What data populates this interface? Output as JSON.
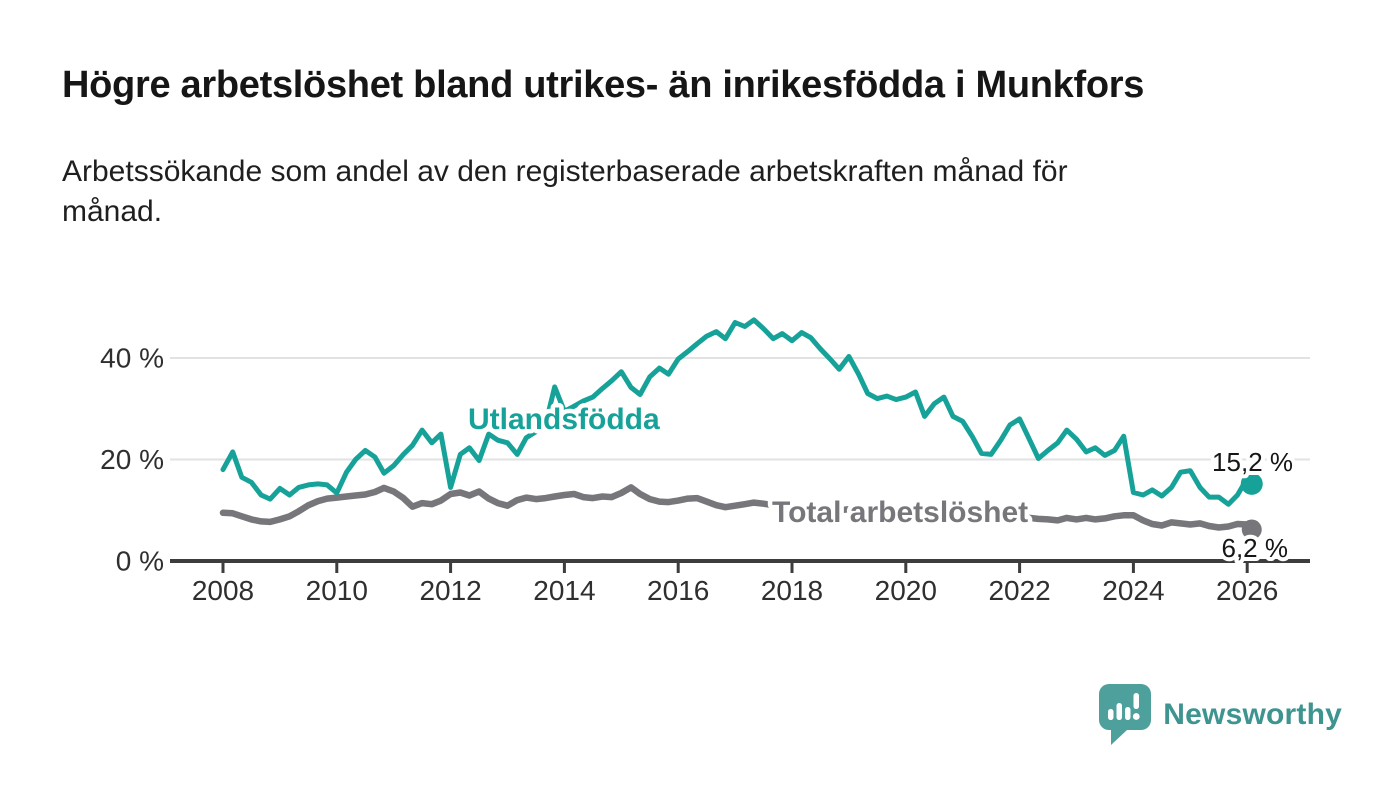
{
  "header": {
    "title": "Högre arbetslöshet bland utrikes- än inrikesfödda i Munkfors",
    "subtitle": "Arbetssökande som andel av den registerbaserade arbetskraften månad för månad.",
    "subtitle_lines": [
      "Arbetssökande som andel av den registerbaserade arbetskraften månad för",
      "månad."
    ]
  },
  "footer": {
    "brand": "Newsworthy"
  },
  "colors": {
    "background": "#ffffff",
    "accent_teal": "#17a299",
    "series_gray": "#77767b",
    "gridline": "#e2e2e2",
    "axis": "#3d3d3d",
    "tick_text": "#2f2f2f",
    "label_text": "#161616",
    "logo_bubble": "#4da09c",
    "logo_wordmark": "#3e948f"
  },
  "chart_data": {
    "type": "line",
    "title": "Högre arbetslöshet bland utrikes- än inrikesfödda i Munkfors",
    "subtitle": "Arbetssökande som andel av den registerbaserade arbetskraften månad för månad.",
    "unit": "%",
    "x_axis": {
      "ticks": [
        2008,
        2010,
        2012,
        2014,
        2016,
        2018,
        2020,
        2022,
        2024,
        2026
      ],
      "tick_labels": [
        "2008",
        "2010",
        "2012",
        "2014",
        "2016",
        "2018",
        "2020",
        "2022",
        "2024",
        "2026"
      ],
      "range": [
        2007.0,
        2027.1
      ]
    },
    "y_axis": {
      "ticks": [
        0,
        20,
        40
      ],
      "tick_labels": [
        "0 %",
        "20 %",
        "40 %"
      ],
      "grid_values": [
        20,
        40
      ],
      "range": [
        0,
        53
      ]
    },
    "legend_position": "inline-labels",
    "grid": true,
    "x": [
      2008,
      2008.17,
      2008.33,
      2008.5,
      2008.67,
      2008.83,
      2009,
      2009.17,
      2009.33,
      2009.5,
      2009.67,
      2009.83,
      2010,
      2010.17,
      2010.33,
      2010.5,
      2010.67,
      2010.83,
      2011,
      2011.17,
      2011.33,
      2011.5,
      2011.67,
      2011.83,
      2012,
      2012.17,
      2012.33,
      2012.5,
      2012.67,
      2012.83,
      2013,
      2013.17,
      2013.33,
      2013.5,
      2013.67,
      2013.83,
      2014,
      2014.17,
      2014.33,
      2014.5,
      2014.67,
      2014.83,
      2015,
      2015.17,
      2015.33,
      2015.5,
      2015.67,
      2015.83,
      2016,
      2016.17,
      2016.33,
      2016.5,
      2016.67,
      2016.83,
      2017,
      2017.17,
      2017.33,
      2017.5,
      2017.67,
      2017.83,
      2018,
      2018.17,
      2018.33,
      2018.5,
      2018.67,
      2018.83,
      2019,
      2019.17,
      2019.33,
      2019.5,
      2019.67,
      2019.83,
      2020,
      2020.17,
      2020.33,
      2020.5,
      2020.67,
      2020.83,
      2021,
      2021.17,
      2021.33,
      2021.5,
      2021.67,
      2021.83,
      2022,
      2022.17,
      2022.33,
      2022.5,
      2022.67,
      2022.83,
      2023,
      2023.17,
      2023.33,
      2023.5,
      2023.67,
      2023.83,
      2024,
      2024.17,
      2024.33,
      2024.5,
      2024.67,
      2024.83,
      2025,
      2025.17,
      2025.33,
      2025.5,
      2025.67,
      2025.83,
      2026,
      2026.08
    ],
    "series": [
      {
        "name": "Utlandsfödda",
        "color": "#17a299",
        "line_width": 5,
        "end_value": 15.2,
        "end_label": "15,2 %",
        "values": [
          18.0,
          21.5,
          16.5,
          15.5,
          13.0,
          12.2,
          14.3,
          13.0,
          14.5,
          15.0,
          15.2,
          15.0,
          13.4,
          17.5,
          20.0,
          21.8,
          20.5,
          17.3,
          18.8,
          21.0,
          22.8,
          25.8,
          23.3,
          25.0,
          14.5,
          21.0,
          22.3,
          19.8,
          25.0,
          23.8,
          23.3,
          21.0,
          24.3,
          25.5,
          27.0,
          34.3,
          29.5,
          30.5,
          31.5,
          32.3,
          34.0,
          35.5,
          37.3,
          34.2,
          32.8,
          36.3,
          38.0,
          36.8,
          39.8,
          41.3,
          42.8,
          44.3,
          45.2,
          43.8,
          47.0,
          46.2,
          47.5,
          45.8,
          43.8,
          44.8,
          43.4,
          45.0,
          44.0,
          41.8,
          39.8,
          37.8,
          40.3,
          36.8,
          33.0,
          32.0,
          32.5,
          31.8,
          32.3,
          33.3,
          28.5,
          31.0,
          32.3,
          28.5,
          27.5,
          24.5,
          21.2,
          21.0,
          23.8,
          26.8,
          28.0,
          24.0,
          20.2,
          21.8,
          23.3,
          25.8,
          24.0,
          21.5,
          22.3,
          20.8,
          21.8,
          24.6,
          13.5,
          13.0,
          14.0,
          12.8,
          14.5,
          17.5,
          17.8,
          14.5,
          12.6,
          12.6,
          11.2,
          13.0,
          16.3,
          15.2
        ]
      },
      {
        "name": "Total arbetslöshet",
        "color": "#77767b",
        "line_width": 6.5,
        "end_value": 6.2,
        "end_label": "6,2 %",
        "values": [
          9.5,
          9.4,
          8.8,
          8.2,
          7.8,
          7.7,
          8.2,
          8.8,
          9.8,
          11.0,
          11.8,
          12.3,
          12.5,
          12.7,
          12.9,
          13.1,
          13.6,
          14.4,
          13.7,
          12.4,
          10.7,
          11.4,
          11.2,
          11.9,
          13.2,
          13.5,
          12.9,
          13.7,
          12.3,
          11.4,
          10.9,
          12.0,
          12.5,
          12.2,
          12.4,
          12.7,
          13.0,
          13.2,
          12.6,
          12.4,
          12.7,
          12.6,
          13.4,
          14.5,
          13.2,
          12.2,
          11.7,
          11.6,
          11.9,
          12.3,
          12.4,
          11.7,
          11.0,
          10.6,
          10.9,
          11.2,
          11.5,
          11.3,
          11.0,
          10.7,
          10.6,
          10.8,
          10.5,
          10.3,
          10.2,
          10.0,
          10.2,
          9.9,
          9.6,
          9.4,
          9.3,
          9.2,
          9.4,
          9.8,
          10.2,
          10.4,
          10.1,
          9.8,
          9.6,
          9.4,
          9.2,
          9.0,
          8.9,
          8.8,
          8.7,
          8.5,
          8.3,
          8.2,
          8.0,
          8.5,
          8.2,
          8.5,
          8.2,
          8.4,
          8.8,
          9.0,
          9.0,
          8.0,
          7.3,
          7.0,
          7.6,
          7.4,
          7.2,
          7.4,
          6.9,
          6.6,
          6.8,
          7.3,
          7.2,
          6.2
        ]
      }
    ]
  }
}
